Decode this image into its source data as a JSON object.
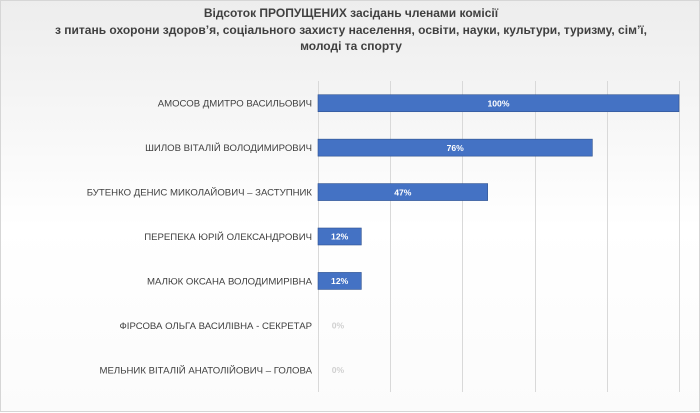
{
  "chart_data": {
    "type": "bar",
    "orientation": "horizontal",
    "title_lines": [
      "Відсоток ПРОПУЩЕНИХ засідань членами  комісії",
      "з питань охорони здоров’я, соціального захисту населення, освіти, науки, культури, туризму, сім’ї,",
      "молоді та спорту"
    ],
    "categories": [
      "АМОСОВ ДМИТРО ВАСИЛЬОВИЧ",
      "ШИЛОВ ВІТАЛІЙ ВОЛОДИМИРОВИЧ",
      "БУТЕНКО ДЕНИС МИКОЛАЙОВИЧ – ЗАСТУПНИК",
      "ПЕРЕПЕКА ЮРІЙ ОЛЕКСАНДРОВИЧ",
      "МАЛЮК ОКСАНА ВОЛОДИМИРІВНА",
      "ФІРСОВА ОЛЬГА  ВАСИЛІВНА - СЕКРЕТАР",
      "МЕЛЬНИК ВІТАЛІЙ АНАТОЛІЙОВИЧ – ГОЛОВА"
    ],
    "values": [
      100,
      76,
      47,
      12,
      12,
      0,
      0
    ],
    "data_labels": [
      "100%",
      "76%",
      "47%",
      "12%",
      "12%",
      "0%",
      "0%"
    ],
    "xlim": [
      0,
      100
    ],
    "grid": true,
    "colors": {
      "bar": "#4472c4",
      "bar_border": "#2f528f",
      "label_on_bar": "#ffffff",
      "label_zero": "#d0d0d0",
      "grid": "#d9d9d9",
      "text": "#404040"
    }
  }
}
